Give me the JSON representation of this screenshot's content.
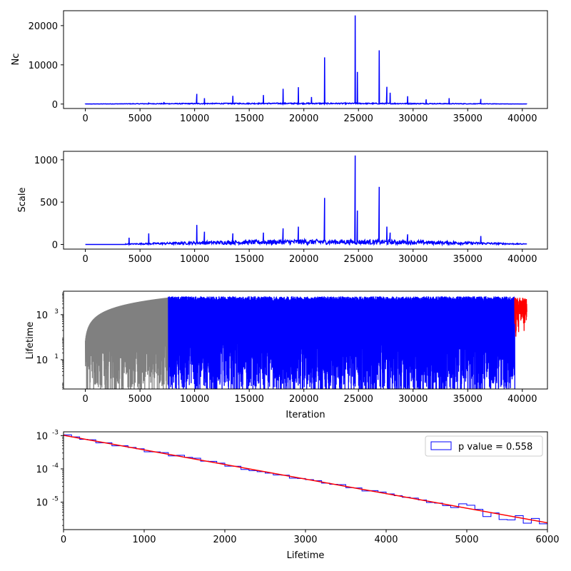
{
  "chart_data": [
    {
      "type": "line",
      "ylabel": "Nc",
      "xlabel": "",
      "xlim": [
        -2000,
        42300
      ],
      "ylim": [
        -1130,
        23800
      ],
      "x_ticks": [
        0,
        5000,
        10000,
        15000,
        20000,
        25000,
        30000,
        35000,
        40000
      ],
      "y_ticks": [
        0,
        10000,
        20000
      ],
      "series": [
        {
          "color": "#0000ff",
          "baseline": 100,
          "points": [
            [
              0,
              0
            ],
            [
              40400,
              0
            ]
          ],
          "spikes": [
            [
              5800,
              400
            ],
            [
              7200,
              500
            ],
            [
              10200,
              2600
            ],
            [
              10900,
              1500
            ],
            [
              13500,
              2100
            ],
            [
              16300,
              2300
            ],
            [
              18100,
              3900
            ],
            [
              19500,
              4300
            ],
            [
              20700,
              1800
            ],
            [
              21900,
              11900
            ],
            [
              24700,
              22600
            ],
            [
              24900,
              8200
            ],
            [
              26900,
              13700
            ],
            [
              27600,
              4400
            ],
            [
              27900,
              2900
            ],
            [
              29500,
              2000
            ],
            [
              31200,
              1200
            ],
            [
              33300,
              1500
            ],
            [
              36200,
              1300
            ]
          ]
        }
      ]
    },
    {
      "type": "line",
      "ylabel": "Scale",
      "xlabel": "",
      "xlim": [
        -2000,
        42300
      ],
      "ylim": [
        -55,
        1100
      ],
      "x_ticks": [
        0,
        5000,
        10000,
        15000,
        20000,
        25000,
        30000,
        35000,
        40000
      ],
      "y_ticks": [
        0,
        500,
        1000
      ],
      "series": [
        {
          "color": "#0000ff",
          "baseline": 20,
          "start": 3700,
          "points": [
            [
              0,
              0
            ],
            [
              40400,
              10
            ]
          ],
          "spikes": [
            [
              4000,
              80
            ],
            [
              5800,
              130
            ],
            [
              10200,
              230
            ],
            [
              10900,
              150
            ],
            [
              13500,
              130
            ],
            [
              16300,
              140
            ],
            [
              18100,
              190
            ],
            [
              19500,
              210
            ],
            [
              21900,
              550
            ],
            [
              24700,
              1050
            ],
            [
              24900,
              400
            ],
            [
              26900,
              680
            ],
            [
              27600,
              210
            ],
            [
              27900,
              140
            ],
            [
              29500,
              120
            ],
            [
              36200,
              100
            ]
          ]
        }
      ]
    },
    {
      "type": "line",
      "ylabel": "Lifetime",
      "xlabel": "Iteration",
      "xlim": [
        -2000,
        42300
      ],
      "ylim": [
        0.5,
        11000
      ],
      "yscale": "log",
      "x_ticks": [
        0,
        5000,
        10000,
        15000,
        20000,
        25000,
        30000,
        35000,
        40000
      ],
      "y_ticks": [
        10,
        1000
      ],
      "series": [
        {
          "color": "#808080",
          "x_range": [
            0,
            7600
          ]
        },
        {
          "color": "#0000ff",
          "x_range": [
            7600,
            39300
          ]
        },
        {
          "color": "#ff0000",
          "x_range": [
            39300,
            40400
          ]
        }
      ]
    },
    {
      "type": "histogram",
      "ylabel": "",
      "xlabel": "Lifetime",
      "xlim": [
        0,
        6000
      ],
      "ylim": [
        1.5e-06,
        0.0013
      ],
      "yscale": "log",
      "x_ticks": [
        0,
        1000,
        2000,
        3000,
        4000,
        5000,
        6000
      ],
      "y_ticks": [
        1e-05,
        0.0001,
        0.001
      ],
      "bin_width": 100,
      "fit_line": {
        "color": "#ff0000",
        "x": [
          0,
          6000
        ],
        "y": [
          0.00102,
          2.4e-06
        ]
      },
      "legend": {
        "label": "p value = 0.558",
        "position": "upper right",
        "color": "#0000ff"
      }
    }
  ]
}
